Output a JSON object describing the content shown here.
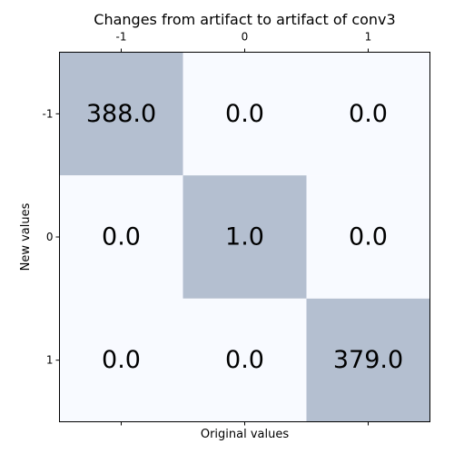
{
  "chart_data": {
    "type": "heatmap",
    "title": "Changes from artifact to artifact of conv3",
    "xlabel": "Original values",
    "ylabel": "New values",
    "x_categories": [
      "-1",
      "0",
      "1"
    ],
    "y_categories": [
      "-1",
      "0",
      "1"
    ],
    "values": [
      [
        388.0,
        0.0,
        0.0
      ],
      [
        0.0,
        1.0,
        0.0
      ],
      [
        0.0,
        0.0,
        379.0
      ]
    ],
    "cell_labels": [
      [
        "388.0",
        "0.0",
        "0.0"
      ],
      [
        "0.0",
        "1.0",
        "0.0"
      ],
      [
        "0.0",
        "0.0",
        "379.0"
      ]
    ],
    "x_ticks_position": "top",
    "colors": {
      "nonzero_cell": "#b4bfd0",
      "zero_cell": "#f8faff",
      "frame": "#000000"
    }
  }
}
